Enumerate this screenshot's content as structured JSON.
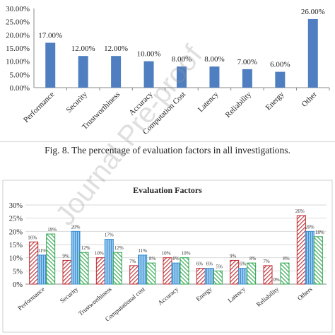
{
  "chart_data": [
    {
      "type": "bar",
      "title": "",
      "categories": [
        "Performance",
        "Security",
        "Trustworthiness",
        "Accuracy",
        "Computation Cost",
        "Latency",
        "Reliability",
        "Energy",
        "Other"
      ],
      "values": [
        17,
        12,
        12,
        10,
        8,
        8,
        7,
        6,
        26
      ],
      "data_labels": [
        "17.00%",
        "12.00%",
        "12.00%",
        "10.00%",
        "8.00%",
        "8.00%",
        "7.00%",
        "6.00%",
        "26.00%"
      ],
      "y_ticks": [
        "0.00%",
        "5.00%",
        "10.00%",
        "15.00%",
        "20.00%",
        "25.00%",
        "30.00%"
      ],
      "ylim": [
        0,
        30
      ],
      "bar_color": "#4f7fc0",
      "grid": false
    },
    {
      "type": "bar",
      "title": "Evaluation Factors",
      "categories": [
        "Performance",
        "Security",
        "Trustworthiness",
        "Computational cost",
        "Accuracy",
        "Energy",
        "Latency",
        "Reliability",
        "Others"
      ],
      "series": [
        {
          "color": "#c0282d",
          "values": [
            16,
            9,
            10,
            7,
            10,
            6,
            9,
            7,
            26
          ],
          "labels": [
            "16%",
            "9%",
            "10%",
            "7%",
            "10%",
            "6%",
            "9%",
            "7%",
            "26%"
          ]
        },
        {
          "color": "#3d8fd1",
          "values": [
            11,
            20,
            17,
            11,
            8,
            6,
            6,
            0,
            20
          ],
          "labels": [
            "11%",
            "20%",
            "17%",
            "11%",
            "8%",
            "6%",
            "6%",
            "0%",
            "20%"
          ]
        },
        {
          "color": "#2ca64b",
          "values": [
            19,
            12,
            12,
            8,
            10,
            5,
            8,
            8,
            18
          ],
          "labels": [
            "19%",
            "12%",
            "12%",
            "8%",
            "10%",
            "5%",
            "8%",
            "8%",
            "18%"
          ]
        }
      ],
      "y_ticks": [
        "0%",
        "5%",
        "10%",
        "15%",
        "20%",
        "25%",
        "30%"
      ],
      "ylim": [
        0,
        30
      ],
      "grid": true
    }
  ],
  "caption": "Fig. 8. The percentage of evaluation factors in all investigations.",
  "watermark": "Journal Pre-proof"
}
